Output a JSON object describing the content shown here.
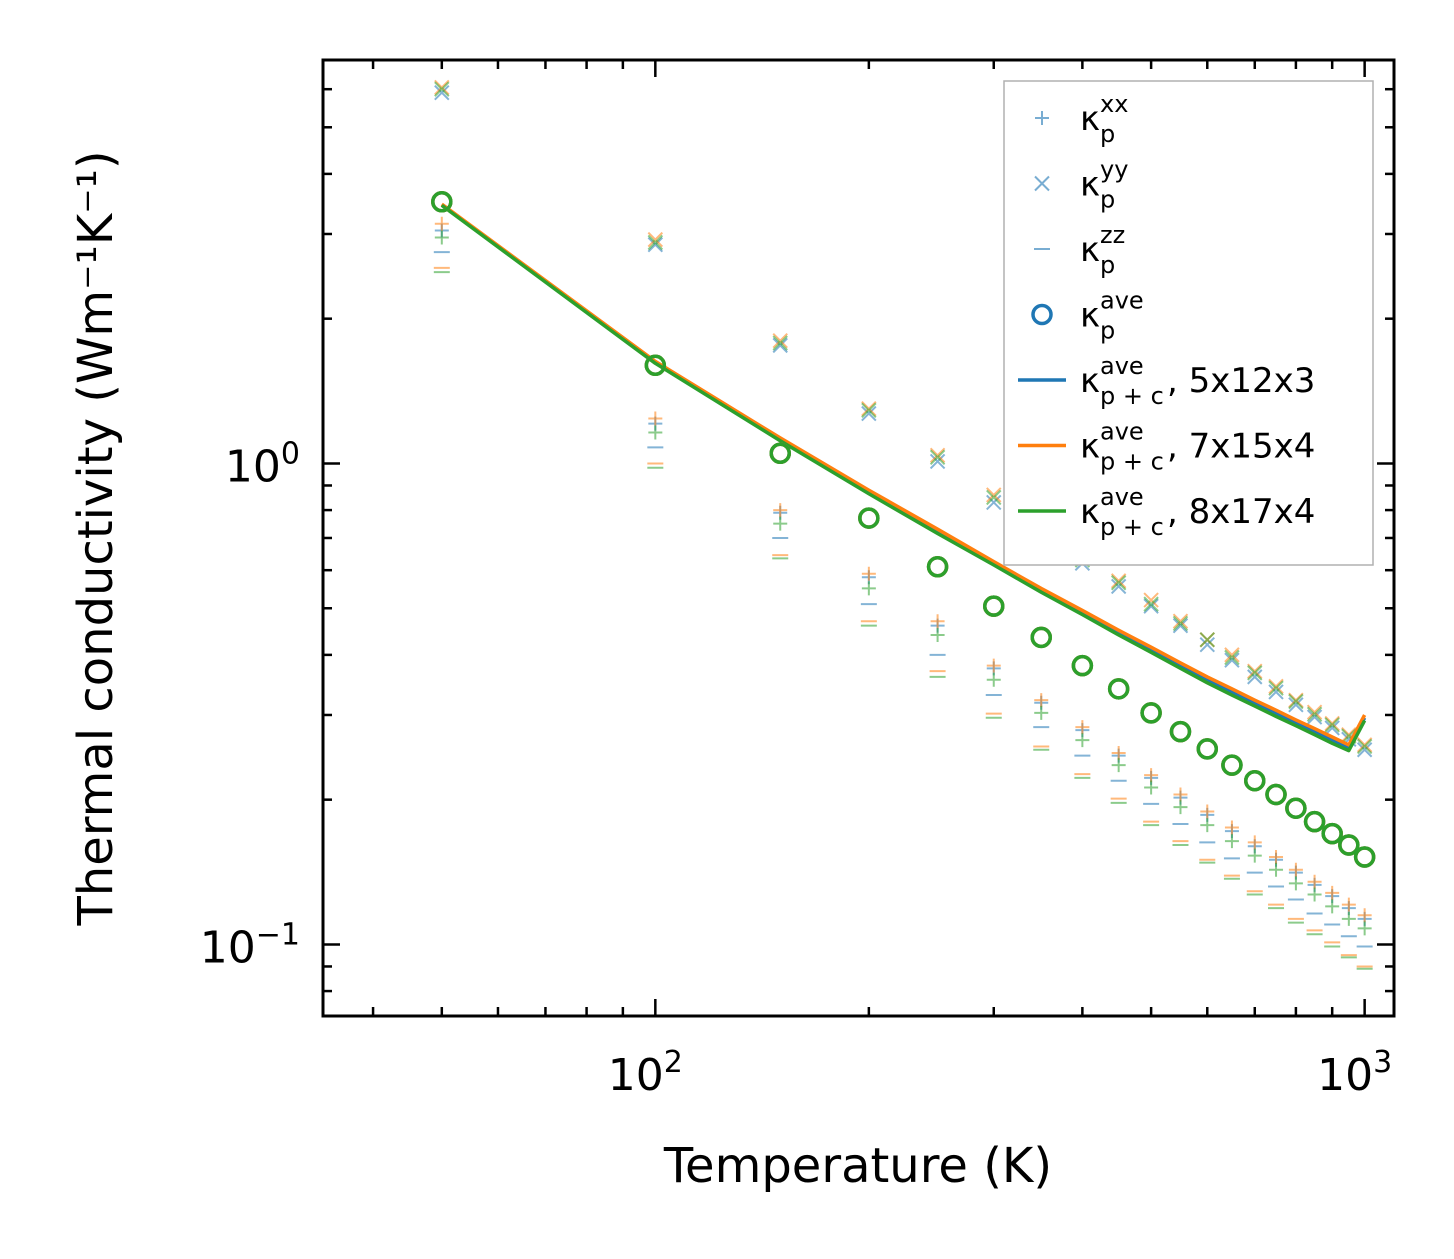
{
  "chart_data": {
    "type": "scatter",
    "xscale": "log",
    "yscale": "log",
    "xlabel": "Temperature (K)",
    "ylabel": "Thermal conductivity (Wm⁻¹K⁻¹)",
    "xlim": [
      34,
      1100
    ],
    "ylim": [
      0.071,
      6.9
    ],
    "x_ticks": [
      {
        "value": 100,
        "base": "10",
        "exp": "2"
      },
      {
        "value": 1000,
        "base": "10",
        "exp": "3"
      }
    ],
    "y_ticks": [
      {
        "value": 0.1,
        "base": "10",
        "exp": "−1"
      },
      {
        "value": 1,
        "base": "10",
        "exp": "0"
      }
    ],
    "colors": {
      "blue": "#1f77b4",
      "orange": "#ff7f0e",
      "green": "#2ca02c"
    },
    "legend_position": "upper right",
    "legend": [
      {
        "key": "kxx",
        "base": "κ",
        "sub": "p",
        "sup": "xx",
        "suffix": ""
      },
      {
        "key": "kyy",
        "base": "κ",
        "sub": "p",
        "sup": "yy",
        "suffix": ""
      },
      {
        "key": "kzz",
        "base": "κ",
        "sub": "p",
        "sup": "zz",
        "suffix": ""
      },
      {
        "key": "kave",
        "base": "κ",
        "sub": "p",
        "sup": "ave",
        "suffix": ""
      },
      {
        "key": "kpc1",
        "base": "κ",
        "sub": "p + c",
        "sup": "ave",
        "suffix": ", 5x12x3"
      },
      {
        "key": "kpc2",
        "base": "κ",
        "sub": "p + c",
        "sup": "ave",
        "suffix": ", 7x15x4"
      },
      {
        "key": "kpc3",
        "base": "κ",
        "sub": "p + c",
        "sup": "ave",
        "suffix": ", 8x17x4"
      }
    ],
    "x": [
      50,
      100,
      150,
      200,
      250,
      300,
      350,
      400,
      450,
      500,
      550,
      600,
      650,
      700,
      750,
      800,
      850,
      900,
      950,
      1000
    ],
    "series": [
      {
        "name": "kxx 5x12x3",
        "marker": "plus",
        "color": "blue",
        "values": [
          3.05,
          1.21,
          0.79,
          0.58,
          0.46,
          0.375,
          0.318,
          0.279,
          0.247,
          0.222,
          0.202,
          0.186,
          0.172,
          0.16,
          0.15,
          0.141,
          0.133,
          0.126,
          0.119,
          0.113
        ]
      },
      {
        "name": "kxx 7x15x4",
        "marker": "plus",
        "color": "orange",
        "values": [
          3.15,
          1.24,
          0.8,
          0.59,
          0.47,
          0.38,
          0.322,
          0.283,
          0.25,
          0.225,
          0.205,
          0.189,
          0.175,
          0.163,
          0.152,
          0.143,
          0.135,
          0.128,
          0.121,
          0.115
        ]
      },
      {
        "name": "kxx 8x17x4",
        "marker": "plus",
        "color": "green",
        "values": [
          2.95,
          1.16,
          0.75,
          0.55,
          0.44,
          0.355,
          0.303,
          0.266,
          0.236,
          0.212,
          0.193,
          0.177,
          0.164,
          0.153,
          0.143,
          0.134,
          0.127,
          0.12,
          0.113,
          0.108
        ]
      },
      {
        "name": "kyy 5x12x3",
        "marker": "x",
        "color": "blue",
        "values": [
          5.9,
          2.85,
          1.76,
          1.27,
          1.01,
          0.83,
          0.71,
          0.62,
          0.555,
          0.505,
          0.46,
          0.42,
          0.39,
          0.36,
          0.335,
          0.315,
          0.297,
          0.282,
          0.267,
          0.254
        ]
      },
      {
        "name": "kyy 7x15x4",
        "marker": "x",
        "color": "orange",
        "values": [
          6.05,
          2.92,
          1.8,
          1.3,
          1.04,
          0.86,
          0.73,
          0.64,
          0.57,
          0.52,
          0.47,
          0.43,
          0.4,
          0.37,
          0.344,
          0.322,
          0.304,
          0.288,
          0.273,
          0.26
        ]
      },
      {
        "name": "kyy 8x17x4",
        "marker": "x",
        "color": "green",
        "values": [
          6.0,
          2.88,
          1.78,
          1.29,
          1.03,
          0.85,
          0.72,
          0.63,
          0.565,
          0.51,
          0.465,
          0.43,
          0.395,
          0.367,
          0.341,
          0.32,
          0.301,
          0.286,
          0.271,
          0.258
        ]
      },
      {
        "name": "kzz 5x12x3",
        "marker": "hline",
        "color": "blue",
        "values": [
          2.75,
          1.08,
          0.7,
          0.51,
          0.4,
          0.33,
          0.283,
          0.247,
          0.219,
          0.196,
          0.178,
          0.163,
          0.151,
          0.141,
          0.132,
          0.124,
          0.116,
          0.11,
          0.104,
          0.099
        ]
      },
      {
        "name": "kzz 7x15x4",
        "marker": "hline",
        "color": "orange",
        "values": [
          2.55,
          1.0,
          0.645,
          0.47,
          0.37,
          0.302,
          0.258,
          0.226,
          0.201,
          0.18,
          0.164,
          0.15,
          0.139,
          0.129,
          0.121,
          0.113,
          0.107,
          0.101,
          0.095,
          0.09
        ]
      },
      {
        "name": "kzz 8x17x4",
        "marker": "hline",
        "color": "green",
        "values": [
          2.5,
          0.98,
          0.635,
          0.46,
          0.36,
          0.296,
          0.254,
          0.222,
          0.197,
          0.177,
          0.161,
          0.148,
          0.137,
          0.127,
          0.119,
          0.111,
          0.105,
          0.099,
          0.094,
          0.089
        ]
      },
      {
        "name": "kave 5x12x3",
        "marker": "circle",
        "color": "blue",
        "values": [
          3.5,
          1.6,
          1.05,
          0.77,
          0.61,
          0.505,
          0.435,
          0.38,
          0.34,
          0.303,
          0.277,
          0.255,
          0.236,
          0.219,
          0.205,
          0.192,
          0.18,
          0.17,
          0.161,
          0.152
        ]
      },
      {
        "name": "kave 7x15x4",
        "marker": "circle",
        "color": "orange",
        "values": [
          3.5,
          1.6,
          1.05,
          0.77,
          0.61,
          0.505,
          0.435,
          0.38,
          0.34,
          0.303,
          0.277,
          0.255,
          0.236,
          0.219,
          0.205,
          0.192,
          0.18,
          0.17,
          0.161,
          0.152
        ]
      },
      {
        "name": "kave 8x17x4",
        "marker": "circle",
        "color": "green",
        "values": [
          3.5,
          1.6,
          1.05,
          0.77,
          0.61,
          0.505,
          0.435,
          0.38,
          0.34,
          0.303,
          0.277,
          0.255,
          0.236,
          0.219,
          0.205,
          0.192,
          0.18,
          0.17,
          0.161,
          0.152
        ]
      },
      {
        "name": "kpc 5x12x3",
        "marker": "line",
        "color": "blue",
        "values": [
          3.45,
          1.62,
          1.12,
          0.87,
          0.72,
          0.62,
          0.545,
          0.49,
          0.445,
          0.41,
          0.38,
          0.355,
          0.335,
          0.318,
          0.303,
          0.289,
          0.277,
          0.266,
          0.256,
          0.296
        ]
      },
      {
        "name": "kpc 7x15x4",
        "marker": "line",
        "color": "orange",
        "values": [
          3.46,
          1.63,
          1.13,
          0.88,
          0.73,
          0.625,
          0.55,
          0.495,
          0.45,
          0.415,
          0.385,
          0.36,
          0.34,
          0.322,
          0.307,
          0.293,
          0.281,
          0.27,
          0.26,
          0.3
        ]
      },
      {
        "name": "kpc 8x17x4",
        "marker": "line",
        "color": "green",
        "values": [
          3.44,
          1.615,
          1.115,
          0.865,
          0.715,
          0.615,
          0.54,
          0.485,
          0.44,
          0.405,
          0.375,
          0.35,
          0.33,
          0.313,
          0.298,
          0.285,
          0.273,
          0.262,
          0.253,
          0.292
        ]
      }
    ]
  }
}
